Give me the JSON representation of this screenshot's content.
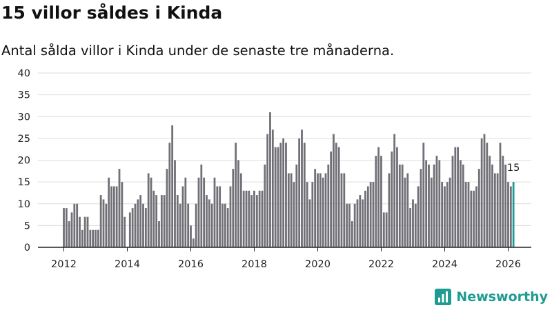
{
  "title": "15 villor såldes i Kinda",
  "subtitle": "Antal sålda villor i Kinda under de senaste tre månaderna.",
  "brand": {
    "name": "Newsworthy",
    "logo_icon": "newsworthy-logo-icon"
  },
  "colors": {
    "bar": "#717077",
    "highlight": "#1f9c92",
    "axis": "#222222",
    "grid": "#dddddd"
  },
  "chart_data": {
    "type": "bar",
    "title": "15 villor såldes i Kinda",
    "subtitle": "Antal sålda villor i Kinda under de senaste tre månaderna.",
    "xlabel": "",
    "ylabel": "",
    "ylim": [
      0,
      40
    ],
    "yticks": [
      0,
      5,
      10,
      15,
      20,
      25,
      30,
      35,
      40
    ],
    "xticks": [
      2012,
      2014,
      2016,
      2018,
      2020,
      2022,
      2024,
      2026
    ],
    "x_start": 2012.0,
    "x_step": 0.08333,
    "grid": true,
    "highlight_last": true,
    "last_value_label": "15",
    "values": [
      9,
      9,
      6,
      8,
      10,
      10,
      7,
      4,
      7,
      7,
      4,
      4,
      4,
      4,
      12,
      11,
      10,
      16,
      14,
      14,
      14,
      18,
      15,
      7,
      0,
      8,
      9,
      10,
      11,
      12,
      10,
      9,
      17,
      16,
      13,
      12,
      6,
      12,
      12,
      18,
      24,
      28,
      20,
      12,
      10,
      14,
      16,
      10,
      5,
      2,
      10,
      16,
      19,
      16,
      12,
      11,
      10,
      16,
      14,
      14,
      10,
      10,
      9,
      14,
      18,
      24,
      20,
      17,
      13,
      13,
      13,
      12,
      13,
      12,
      13,
      13,
      19,
      26,
      31,
      27,
      23,
      23,
      24,
      25,
      24,
      17,
      17,
      15,
      19,
      25,
      27,
      24,
      15,
      11,
      15,
      18,
      17,
      17,
      16,
      17,
      19,
      22,
      26,
      24,
      23,
      17,
      17,
      10,
      10,
      6,
      10,
      11,
      12,
      11,
      13,
      14,
      15,
      15,
      21,
      23,
      21,
      8,
      8,
      17,
      22,
      26,
      23,
      19,
      19,
      16,
      17,
      9,
      11,
      10,
      14,
      18,
      24,
      20,
      19,
      16,
      19,
      21,
      20,
      15,
      14,
      15,
      16,
      21,
      23,
      23,
      20,
      19,
      15,
      15,
      13,
      13,
      14,
      18,
      25,
      26,
      24,
      21,
      19,
      17,
      17,
      24,
      21,
      19,
      15,
      14,
      15
    ]
  }
}
